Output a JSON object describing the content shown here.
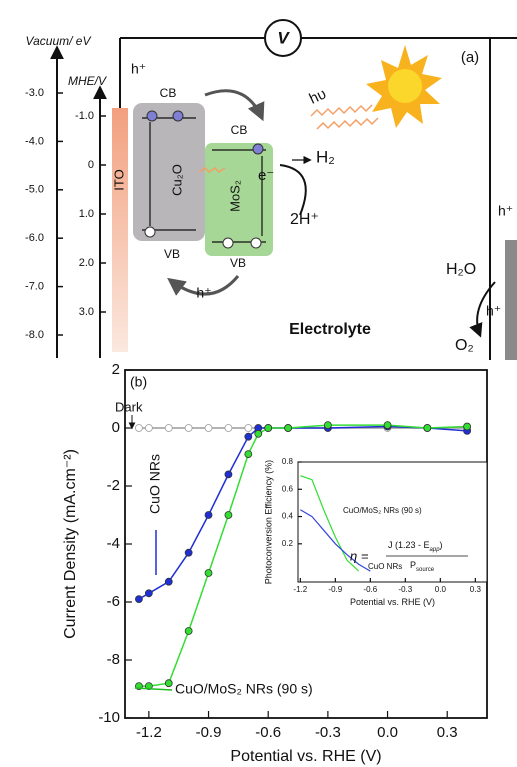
{
  "diagram": {
    "label": "(a)",
    "meter": "V",
    "vacuum_axis": {
      "label": "Vacuum/ eV",
      "ticks": [
        "-3.0",
        "-4.0",
        "-5.0",
        "-6.0",
        "-7.0",
        "-8.0"
      ]
    },
    "mhe_axis": {
      "label": "MHE/V",
      "ticks": [
        "-1.0",
        "0",
        "1.0",
        "2.0",
        "3.0"
      ]
    },
    "ito": "ITO",
    "hole_top": "h⁺",
    "cu2o": {
      "label": "Cu₂O",
      "cb": "CB",
      "vb": "VB"
    },
    "mos2": {
      "label": "MoS₂",
      "cb": "CB",
      "vb": "VB"
    },
    "hole_transfer": "h⁺",
    "light": "hυ",
    "electron": "e⁻",
    "h2": "H₂",
    "protons": "2H⁺",
    "electrolyte": "Electrolyte",
    "counter": {
      "hole": "h⁺",
      "water": "H₂O",
      "hole2": "h⁺",
      "oxygen": "O₂"
    }
  },
  "chart_data": [
    {
      "type": "line",
      "label": "(b)",
      "y_label": "Current Density (mA.cm⁻²)",
      "x_label": "Potential vs. RHE (V)",
      "x": [
        -1.25,
        -1.2,
        -1.1,
        -1.0,
        -0.9,
        -0.8,
        -0.7,
        -0.65,
        -0.6,
        -0.5,
        -0.3,
        0,
        0.2,
        0.4
      ],
      "series": [
        {
          "name": "Dark",
          "color": "#9a9a9a",
          "values": [
            0,
            0,
            0,
            0,
            0,
            0,
            0,
            0,
            0,
            0,
            0,
            0,
            0,
            0
          ]
        },
        {
          "name": "CuO NRs",
          "color": "#1f2fd6",
          "values": [
            -5.9,
            -5.7,
            -5.3,
            -4.3,
            -3.0,
            -1.6,
            -0.3,
            0,
            0,
            0,
            0,
            0.05,
            0,
            -0.1
          ]
        },
        {
          "name": "CuO/MoS₂ NRs (90 s)",
          "color": "#33dd33",
          "values": [
            -8.9,
            -8.9,
            -8.8,
            -7.0,
            -5.0,
            -3.0,
            -0.9,
            -0.2,
            0,
            0,
            0.1,
            0.1,
            0,
            0.05
          ]
        }
      ],
      "xlim": [
        -1.32,
        0.5
      ],
      "ylim": [
        -10,
        2
      ],
      "xticks": [
        -1.2,
        -0.9,
        -0.6,
        -0.3,
        {
          "value": 0,
          "label": "0.0"
        },
        0.3
      ],
      "yticks": [
        2,
        0,
        -2,
        -4,
        -6,
        -8,
        -10
      ]
    },
    {
      "type": "line",
      "y_label": "Photoconversion Efficiency (%)",
      "x_label": "Potential vs. RHE (V)",
      "x": [
        -1.2,
        -1.1,
        -1.0,
        -0.9,
        -0.8,
        -0.7,
        -0.6
      ],
      "series": [
        {
          "name": "CuO/MoS₂ NRs (90 s)",
          "color": "#33dd33",
          "values": [
            0.7,
            0.67,
            0.45,
            0.25,
            0.08,
            0,
            null
          ]
        },
        {
          "name": "CuO NRs",
          "color": "#3344dd",
          "values": [
            0.45,
            0.4,
            0.3,
            0.2,
            0.12,
            0.05,
            0
          ]
        }
      ],
      "equation": {
        "lhs": "η =",
        "numerator": "J (1.23 - E",
        "numerator_sub": "app",
        "numerator_end": ")",
        "denominator": "P",
        "denominator_sub": "source"
      },
      "xlim": [
        -1.22,
        0.4
      ],
      "ylim": [
        -0.08,
        0.8
      ],
      "xticks": [
        -1.2,
        -0.9,
        -0.6,
        -0.3,
        {
          "value": 0,
          "label": "0.0"
        },
        0.3
      ],
      "yticks": [
        0.2,
        0.4,
        0.6,
        0.8
      ]
    }
  ]
}
